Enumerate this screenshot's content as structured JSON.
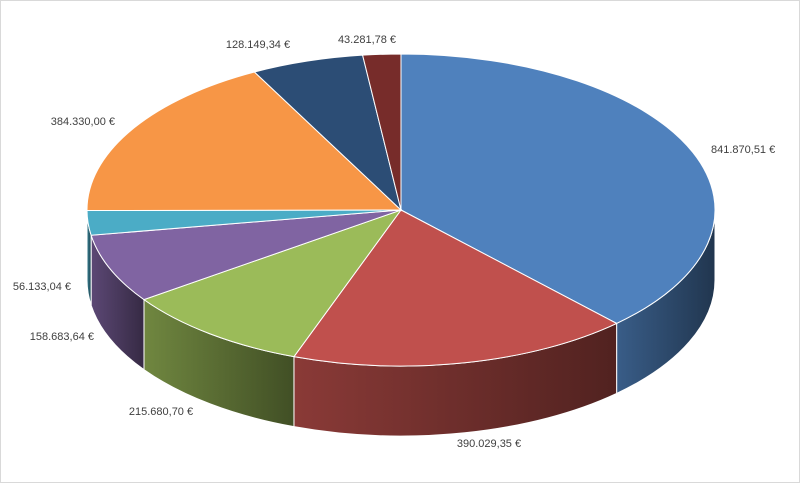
{
  "chart_data": {
    "type": "pie",
    "style": "3d",
    "legend": "none",
    "slices": [
      {
        "value": 841870.51,
        "label": "841.870,51 €",
        "color": "#4f81bd"
      },
      {
        "value": 390029.35,
        "label": "390.029,35 €",
        "color": "#c0504d"
      },
      {
        "value": 215680.7,
        "label": "215.680,70 €",
        "color": "#9bbb59"
      },
      {
        "value": 158683.64,
        "label": "158.683,64 €",
        "color": "#8064a2"
      },
      {
        "value": 56133.04,
        "label": "56.133,04 €",
        "color": "#4bacc6"
      },
      {
        "value": 384330.0,
        "label": "384.330,00 €",
        "color": "#f79646"
      },
      {
        "value": 128149.34,
        "label": "128.149,34 €",
        "color": "#2c4d75"
      },
      {
        "value": 43281.78,
        "label": "43.281,78 €",
        "color": "#772c2a"
      }
    ]
  }
}
